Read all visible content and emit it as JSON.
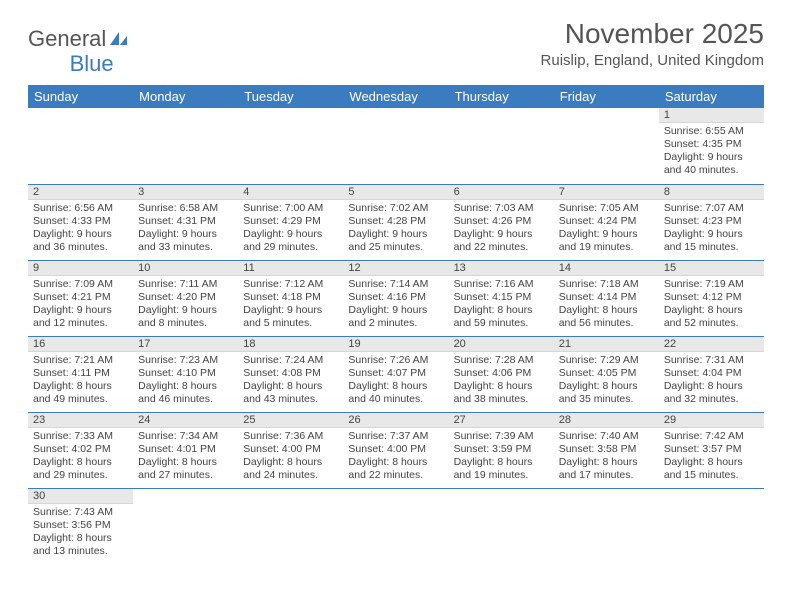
{
  "logo": {
    "text1": "General",
    "text2": "Blue"
  },
  "title": "November 2025",
  "location": "Ruislip, England, United Kingdom",
  "colors": {
    "header_bg": "#3b7bbf",
    "header_text": "#ffffff",
    "daynum_bg": "#e8e8e8",
    "row_divider": "#3b7bbf",
    "page_bg": "#ffffff",
    "text": "#444444",
    "title_text": "#555555"
  },
  "daysOfWeek": [
    "Sunday",
    "Monday",
    "Tuesday",
    "Wednesday",
    "Thursday",
    "Friday",
    "Saturday"
  ],
  "weeks": [
    [
      null,
      null,
      null,
      null,
      null,
      null,
      {
        "n": "1",
        "sr": "Sunrise: 6:55 AM",
        "ss": "Sunset: 4:35 PM",
        "dl1": "Daylight: 9 hours",
        "dl2": "and 40 minutes."
      }
    ],
    [
      {
        "n": "2",
        "sr": "Sunrise: 6:56 AM",
        "ss": "Sunset: 4:33 PM",
        "dl1": "Daylight: 9 hours",
        "dl2": "and 36 minutes."
      },
      {
        "n": "3",
        "sr": "Sunrise: 6:58 AM",
        "ss": "Sunset: 4:31 PM",
        "dl1": "Daylight: 9 hours",
        "dl2": "and 33 minutes."
      },
      {
        "n": "4",
        "sr": "Sunrise: 7:00 AM",
        "ss": "Sunset: 4:29 PM",
        "dl1": "Daylight: 9 hours",
        "dl2": "and 29 minutes."
      },
      {
        "n": "5",
        "sr": "Sunrise: 7:02 AM",
        "ss": "Sunset: 4:28 PM",
        "dl1": "Daylight: 9 hours",
        "dl2": "and 25 minutes."
      },
      {
        "n": "6",
        "sr": "Sunrise: 7:03 AM",
        "ss": "Sunset: 4:26 PM",
        "dl1": "Daylight: 9 hours",
        "dl2": "and 22 minutes."
      },
      {
        "n": "7",
        "sr": "Sunrise: 7:05 AM",
        "ss": "Sunset: 4:24 PM",
        "dl1": "Daylight: 9 hours",
        "dl2": "and 19 minutes."
      },
      {
        "n": "8",
        "sr": "Sunrise: 7:07 AM",
        "ss": "Sunset: 4:23 PM",
        "dl1": "Daylight: 9 hours",
        "dl2": "and 15 minutes."
      }
    ],
    [
      {
        "n": "9",
        "sr": "Sunrise: 7:09 AM",
        "ss": "Sunset: 4:21 PM",
        "dl1": "Daylight: 9 hours",
        "dl2": "and 12 minutes."
      },
      {
        "n": "10",
        "sr": "Sunrise: 7:11 AM",
        "ss": "Sunset: 4:20 PM",
        "dl1": "Daylight: 9 hours",
        "dl2": "and 8 minutes."
      },
      {
        "n": "11",
        "sr": "Sunrise: 7:12 AM",
        "ss": "Sunset: 4:18 PM",
        "dl1": "Daylight: 9 hours",
        "dl2": "and 5 minutes."
      },
      {
        "n": "12",
        "sr": "Sunrise: 7:14 AM",
        "ss": "Sunset: 4:16 PM",
        "dl1": "Daylight: 9 hours",
        "dl2": "and 2 minutes."
      },
      {
        "n": "13",
        "sr": "Sunrise: 7:16 AM",
        "ss": "Sunset: 4:15 PM",
        "dl1": "Daylight: 8 hours",
        "dl2": "and 59 minutes."
      },
      {
        "n": "14",
        "sr": "Sunrise: 7:18 AM",
        "ss": "Sunset: 4:14 PM",
        "dl1": "Daylight: 8 hours",
        "dl2": "and 56 minutes."
      },
      {
        "n": "15",
        "sr": "Sunrise: 7:19 AM",
        "ss": "Sunset: 4:12 PM",
        "dl1": "Daylight: 8 hours",
        "dl2": "and 52 minutes."
      }
    ],
    [
      {
        "n": "16",
        "sr": "Sunrise: 7:21 AM",
        "ss": "Sunset: 4:11 PM",
        "dl1": "Daylight: 8 hours",
        "dl2": "and 49 minutes."
      },
      {
        "n": "17",
        "sr": "Sunrise: 7:23 AM",
        "ss": "Sunset: 4:10 PM",
        "dl1": "Daylight: 8 hours",
        "dl2": "and 46 minutes."
      },
      {
        "n": "18",
        "sr": "Sunrise: 7:24 AM",
        "ss": "Sunset: 4:08 PM",
        "dl1": "Daylight: 8 hours",
        "dl2": "and 43 minutes."
      },
      {
        "n": "19",
        "sr": "Sunrise: 7:26 AM",
        "ss": "Sunset: 4:07 PM",
        "dl1": "Daylight: 8 hours",
        "dl2": "and 40 minutes."
      },
      {
        "n": "20",
        "sr": "Sunrise: 7:28 AM",
        "ss": "Sunset: 4:06 PM",
        "dl1": "Daylight: 8 hours",
        "dl2": "and 38 minutes."
      },
      {
        "n": "21",
        "sr": "Sunrise: 7:29 AM",
        "ss": "Sunset: 4:05 PM",
        "dl1": "Daylight: 8 hours",
        "dl2": "and 35 minutes."
      },
      {
        "n": "22",
        "sr": "Sunrise: 7:31 AM",
        "ss": "Sunset: 4:04 PM",
        "dl1": "Daylight: 8 hours",
        "dl2": "and 32 minutes."
      }
    ],
    [
      {
        "n": "23",
        "sr": "Sunrise: 7:33 AM",
        "ss": "Sunset: 4:02 PM",
        "dl1": "Daylight: 8 hours",
        "dl2": "and 29 minutes."
      },
      {
        "n": "24",
        "sr": "Sunrise: 7:34 AM",
        "ss": "Sunset: 4:01 PM",
        "dl1": "Daylight: 8 hours",
        "dl2": "and 27 minutes."
      },
      {
        "n": "25",
        "sr": "Sunrise: 7:36 AM",
        "ss": "Sunset: 4:00 PM",
        "dl1": "Daylight: 8 hours",
        "dl2": "and 24 minutes."
      },
      {
        "n": "26",
        "sr": "Sunrise: 7:37 AM",
        "ss": "Sunset: 4:00 PM",
        "dl1": "Daylight: 8 hours",
        "dl2": "and 22 minutes."
      },
      {
        "n": "27",
        "sr": "Sunrise: 7:39 AM",
        "ss": "Sunset: 3:59 PM",
        "dl1": "Daylight: 8 hours",
        "dl2": "and 19 minutes."
      },
      {
        "n": "28",
        "sr": "Sunrise: 7:40 AM",
        "ss": "Sunset: 3:58 PM",
        "dl1": "Daylight: 8 hours",
        "dl2": "and 17 minutes."
      },
      {
        "n": "29",
        "sr": "Sunrise: 7:42 AM",
        "ss": "Sunset: 3:57 PM",
        "dl1": "Daylight: 8 hours",
        "dl2": "and 15 minutes."
      }
    ],
    [
      {
        "n": "30",
        "sr": "Sunrise: 7:43 AM",
        "ss": "Sunset: 3:56 PM",
        "dl1": "Daylight: 8 hours",
        "dl2": "and 13 minutes."
      },
      null,
      null,
      null,
      null,
      null,
      null
    ]
  ]
}
